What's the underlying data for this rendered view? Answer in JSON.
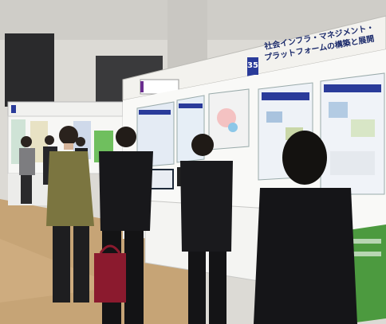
{
  "photo": {
    "description_alt": "",
    "booth_number": "35",
    "main_sign": {
      "line1": "社会インフラ・マネジメント・",
      "line2": "プラットフォームの構築と展開"
    }
  },
  "colors": {
    "wall": "#e9e7e2",
    "floor": "#c8a77a",
    "booth_blue": "#2a3b9a",
    "suit": "#1c1c1f",
    "green_panel": "#4c9a3f"
  }
}
